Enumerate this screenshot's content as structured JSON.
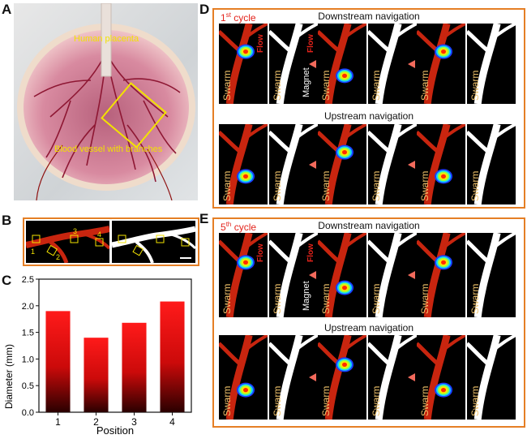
{
  "panels": {
    "a": "A",
    "b": "B",
    "c": "C",
    "d": "D",
    "e": "E"
  },
  "panel_a": {
    "label_top": "Human placenta",
    "label_bottom": "Blood vessel with branches"
  },
  "panel_b": {
    "boxes": [
      "1",
      "2",
      "3",
      "4"
    ]
  },
  "panel_d": {
    "cycle_num": "1",
    "cycle_suffix": "st",
    "cycle_word": " cycle",
    "row1_title": "Downstream navigation",
    "row2_title": "Upstream navigation"
  },
  "panel_e": {
    "cycle_num": "5",
    "cycle_suffix": "th",
    "cycle_word": " cycle",
    "row1_title": "Downstream navigation",
    "row2_title": "Upstream navigation"
  },
  "frame_text": {
    "swarm": "Swarm",
    "magnet": "Magnet",
    "flow": "Flow"
  },
  "colors": {
    "frame": "#e57f25",
    "bar_top": "#ff1a1a",
    "bar_bottom": "#2a0000",
    "vessel": "#c8250f",
    "cycle_red": "#e3231b",
    "label_yellow": "#f2e200",
    "arrow": "#f26a5c"
  },
  "chart_data": {
    "type": "bar",
    "categories": [
      "1",
      "2",
      "3",
      "4"
    ],
    "values": [
      1.9,
      1.4,
      1.68,
      2.08
    ],
    "xlabel": "Position",
    "ylabel": "Diameter (mm)",
    "ylim": [
      0,
      2.5
    ],
    "yticks": [
      "0.0",
      "0.5",
      "1.0",
      "1.5",
      "2.0",
      "2.5"
    ],
    "xticks": [
      "1",
      "2",
      "3",
      "4"
    ]
  }
}
